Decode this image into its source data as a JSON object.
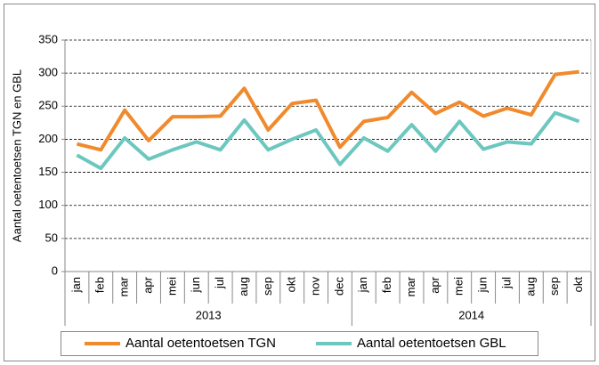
{
  "chart_data": {
    "type": "line",
    "y_label": "Aantal oetentoetsen TGN en GBL",
    "groups": [
      {
        "name": "2013",
        "categories": [
          "jan",
          "feb",
          "mar",
          "apr",
          "mei",
          "jun",
          "jul",
          "aug",
          "sep",
          "okt",
          "nov",
          "dec"
        ]
      },
      {
        "name": "2014",
        "categories": [
          "jan",
          "feb",
          "mar",
          "apr",
          "mei",
          "jun",
          "jul",
          "aug",
          "sep",
          "okt"
        ]
      }
    ],
    "series": [
      {
        "name": "Aantal oetentoetsen TGN",
        "color": "#f08a2c",
        "values": [
          193,
          184,
          244,
          198,
          234,
          234,
          235,
          277,
          214,
          254,
          259,
          188,
          227,
          233,
          271,
          239,
          256,
          235,
          247,
          237,
          298,
          302
        ]
      },
      {
        "name": "Aantal oetentoetsen GBL",
        "color": "#6cc7bf",
        "values": [
          176,
          156,
          202,
          170,
          184,
          196,
          184,
          229,
          184,
          200,
          214,
          162,
          202,
          182,
          222,
          182,
          227,
          185,
          196,
          193,
          240,
          227
        ]
      }
    ],
    "ylim": [
      0,
      350
    ],
    "yticks": [
      0,
      50,
      100,
      150,
      200,
      250,
      300,
      350
    ],
    "grid": true
  }
}
